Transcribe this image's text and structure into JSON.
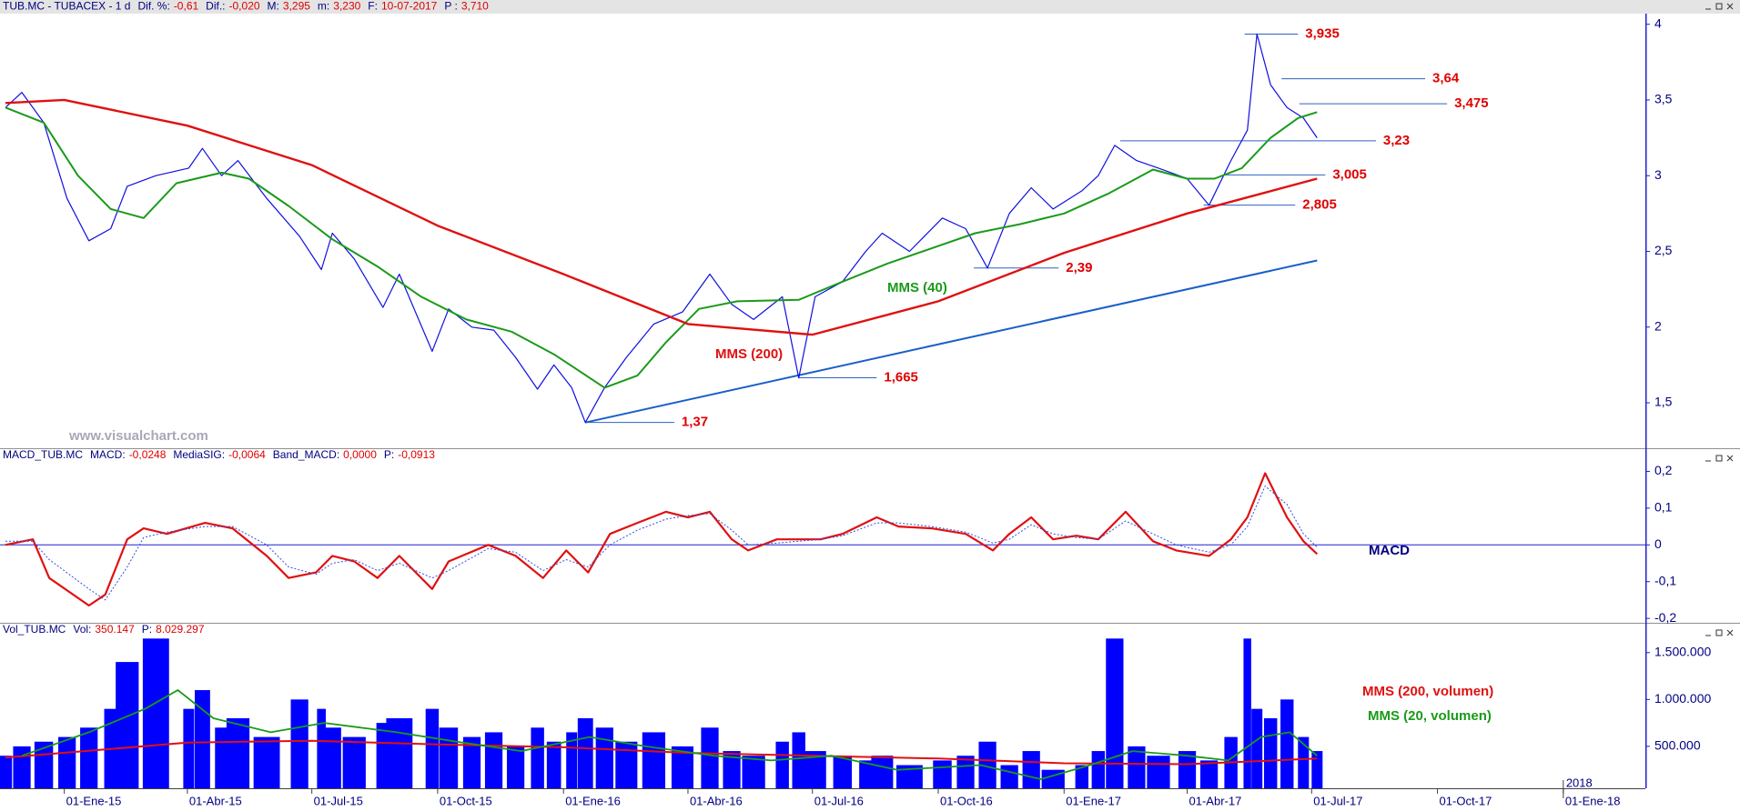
{
  "chart_data": [
    {
      "type": "line",
      "header": {
        "symbol": "TUB.MC - TUBACEX - 1 d",
        "fields": [
          {
            "label": "Dif. %:",
            "value": "-0,61"
          },
          {
            "label": "Dif.:",
            "value": "-0,020"
          },
          {
            "label": "M:",
            "value": "3,295"
          },
          {
            "label": "m:",
            "value": "3,230"
          },
          {
            "label": "F:",
            "value": "10-07-2017"
          },
          {
            "label": "P :",
            "value": "3,710"
          }
        ]
      },
      "watermark": "www.visualchart.com",
      "ylim": [
        1.2,
        4.07
      ],
      "yticks": [
        {
          "value": 1.5,
          "label": "1,5"
        },
        2,
        {
          "value": 2.5,
          "label": "2,5"
        },
        3,
        {
          "value": 3.5,
          "label": "3,5"
        },
        4
      ],
      "series": [
        {
          "color": "#1010e0",
          "width": 1.2,
          "x": [
            "2014-11-19",
            "2014-12-01",
            "2014-12-17",
            "2015-01-03",
            "2015-01-19",
            "2015-02-04",
            "2015-02-16",
            "2015-03-09",
            "2015-04-02",
            "2015-04-12",
            "2015-04-26",
            "2015-05-08",
            "2015-05-29",
            "2015-06-22",
            "2015-07-08",
            "2015-07-16",
            "2015-08-01",
            "2015-08-22",
            "2015-09-03",
            "2015-09-27",
            "2015-10-09",
            "2015-10-26",
            "2015-11-11",
            "2015-11-27",
            "2015-12-13",
            "2015-12-25",
            "2016-01-07",
            "2016-01-17",
            "2016-01-31",
            "2016-02-16",
            "2016-03-07",
            "2016-03-28",
            "2016-04-17",
            "2016-05-03",
            "2016-05-19",
            "2016-06-09",
            "2016-06-21",
            "2016-07-03",
            "2016-07-23",
            "2016-08-09",
            "2016-08-21",
            "2016-09-10",
            "2016-10-04",
            "2016-10-21",
            "2016-11-06",
            "2016-11-22",
            "2016-12-08",
            "2016-12-24",
            "2017-01-14",
            "2017-01-26",
            "2017-02-07",
            "2017-02-23",
            "2017-03-11",
            "2017-04-01",
            "2017-04-17",
            "2017-05-03",
            "2017-05-15",
            "2017-05-22",
            "2017-06-01",
            "2017-06-13",
            "2017-06-25",
            "2017-07-05"
          ],
          "values": [
            3.45,
            3.55,
            3.35,
            2.85,
            2.57,
            2.65,
            2.93,
            3.0,
            3.05,
            3.18,
            3.0,
            3.1,
            2.85,
            2.6,
            2.38,
            2.62,
            2.45,
            2.13,
            2.35,
            1.84,
            2.12,
            2.0,
            1.98,
            1.8,
            1.59,
            1.75,
            1.6,
            1.37,
            1.6,
            1.8,
            2.02,
            2.1,
            2.35,
            2.15,
            2.05,
            2.2,
            1.665,
            2.2,
            2.3,
            2.5,
            2.62,
            2.5,
            2.72,
            2.65,
            2.39,
            2.75,
            2.92,
            2.78,
            2.9,
            3.0,
            3.2,
            3.1,
            3.05,
            2.98,
            2.805,
            3.1,
            3.3,
            3.935,
            3.6,
            3.45,
            3.38,
            3.25
          ]
        },
        {
          "name": "MMS (40)",
          "color": "#1a9a1a",
          "width": 2,
          "x": [
            "2014-11-19",
            "2014-12-17",
            "2015-01-11",
            "2015-02-04",
            "2015-02-28",
            "2015-03-24",
            "2015-04-26",
            "2015-05-16",
            "2015-06-14",
            "2015-07-16",
            "2015-08-18",
            "2015-09-19",
            "2015-10-22",
            "2015-11-24",
            "2015-12-25",
            "2016-01-31",
            "2016-02-24",
            "2016-03-16",
            "2016-04-09",
            "2016-05-07",
            "2016-06-21",
            "2016-07-23",
            "2016-08-25",
            "2016-09-26",
            "2016-10-28",
            "2016-11-30",
            "2017-01-01",
            "2017-02-02",
            "2017-03-07",
            "2017-04-01",
            "2017-04-21",
            "2017-05-11",
            "2017-06-01",
            "2017-06-21",
            "2017-07-05"
          ],
          "values": [
            3.45,
            3.35,
            3.0,
            2.78,
            2.72,
            2.95,
            3.02,
            2.98,
            2.8,
            2.58,
            2.4,
            2.2,
            2.05,
            1.97,
            1.82,
            1.6,
            1.68,
            1.9,
            2.12,
            2.17,
            2.18,
            2.3,
            2.42,
            2.52,
            2.62,
            2.68,
            2.75,
            2.88,
            3.04,
            2.98,
            2.98,
            3.05,
            3.25,
            3.38,
            3.42
          ]
        },
        {
          "name": "MMS (200)",
          "color": "#e01010",
          "width": 2.4,
          "x": [
            "2014-11-19",
            "2015-01-01",
            "2015-04-01",
            "2015-07-01",
            "2015-10-01",
            "2016-01-01",
            "2016-04-01",
            "2016-07-01",
            "2016-10-01",
            "2017-01-01",
            "2017-04-01",
            "2017-07-05"
          ],
          "values": [
            3.48,
            3.5,
            3.33,
            3.07,
            2.67,
            2.35,
            2.02,
            1.95,
            2.17,
            2.49,
            2.75,
            2.98
          ]
        }
      ],
      "trendline": {
        "color": "#1a5fc8",
        "x": [
          "2016-01-17",
          "2017-07-05"
        ],
        "values": [
          1.37,
          2.44
        ]
      },
      "annotations": [
        {
          "value": 3.935,
          "label": "3,935",
          "x": [
            "2017-05-13",
            "2017-06-21"
          ]
        },
        {
          "value": 3.64,
          "label": "3,64",
          "x": [
            "2017-06-09",
            "2017-09-22"
          ]
        },
        {
          "value": 3.475,
          "label": "3,475",
          "x": [
            "2017-06-22",
            "2017-10-08"
          ]
        },
        {
          "value": 3.23,
          "label": "3,23",
          "x": [
            "2017-02-11",
            "2017-08-17"
          ]
        },
        {
          "value": 3.005,
          "label": "3,005",
          "x": [
            "2017-04-29",
            "2017-07-11"
          ]
        },
        {
          "value": 2.805,
          "label": "2,805",
          "x": [
            "2017-04-13",
            "2017-06-19"
          ]
        },
        {
          "value": 2.39,
          "label": "2,39",
          "x": [
            "2016-10-27",
            "2016-12-28"
          ]
        },
        {
          "value": 1.665,
          "label": "1,665",
          "x": [
            "2016-06-21",
            "2016-08-17"
          ]
        },
        {
          "value": 1.37,
          "label": "1,37",
          "x": [
            "2016-01-17",
            "2016-03-22"
          ]
        }
      ]
    },
    {
      "type": "line",
      "header": {
        "symbol": "MACD_TUB.MC",
        "fields": [
          {
            "label": "MACD:",
            "value": "-0,0248"
          },
          {
            "label": "MediaSIG:",
            "value": "-0,0064"
          },
          {
            "label": "Band_MACD:",
            "value": "0,0000"
          },
          {
            "label": "P:",
            "value": "-0,0913"
          }
        ]
      },
      "label": "MACD",
      "zero_line": true,
      "ylim": [
        -0.212,
        0.263
      ],
      "yticks": [
        {
          "value": 0.2,
          "label": "0,2"
        },
        {
          "value": 0.1,
          "label": "0,1"
        },
        0,
        {
          "value": -0.1,
          "label": "-0,1"
        },
        {
          "value": -0.2,
          "label": "-0,2"
        }
      ],
      "x": [
        "2014-11-19",
        "2014-12-09",
        "2014-12-21",
        "2015-01-19",
        "2015-01-31",
        "2015-02-16",
        "2015-02-28",
        "2015-03-17",
        "2015-04-14",
        "2015-05-04",
        "2015-05-29",
        "2015-06-14",
        "2015-07-04",
        "2015-07-16",
        "2015-08-01",
        "2015-08-18",
        "2015-09-03",
        "2015-09-27",
        "2015-10-09",
        "2015-11-07",
        "2015-11-27",
        "2015-12-17",
        "2016-01-03",
        "2016-01-19",
        "2016-02-04",
        "2016-02-24",
        "2016-03-16",
        "2016-04-01",
        "2016-04-17",
        "2016-05-03",
        "2016-05-15",
        "2016-06-05",
        "2016-07-07",
        "2016-07-23",
        "2016-08-17",
        "2016-09-02",
        "2016-09-26",
        "2016-10-21",
        "2016-11-10",
        "2016-11-22",
        "2016-12-08",
        "2016-12-24",
        "2017-01-10",
        "2017-01-26",
        "2017-02-15",
        "2017-03-07",
        "2017-03-24",
        "2017-04-17",
        "2017-05-03",
        "2017-05-15",
        "2017-05-28",
        "2017-06-13",
        "2017-06-25",
        "2017-07-05"
      ],
      "series": [
        {
          "color": "#e01010",
          "width": 2.2,
          "values": [
            0.0,
            0.015,
            -0.09,
            -0.165,
            -0.135,
            0.015,
            0.045,
            0.03,
            0.06,
            0.045,
            -0.03,
            -0.09,
            -0.075,
            -0.03,
            -0.045,
            -0.09,
            -0.03,
            -0.12,
            -0.045,
            0.0,
            -0.03,
            -0.09,
            -0.015,
            -0.075,
            0.03,
            0.06,
            0.09,
            0.075,
            0.09,
            0.015,
            -0.015,
            0.015,
            0.015,
            0.03,
            0.075,
            0.05,
            0.045,
            0.03,
            -0.015,
            0.03,
            0.075,
            0.015,
            0.025,
            0.015,
            0.09,
            0.01,
            -0.015,
            -0.03,
            0.015,
            0.075,
            0.195,
            0.075,
            0.01,
            -0.0248
          ]
        },
        {
          "color": "#3050e0",
          "width": 1,
          "dash": true,
          "values": [
            0.01,
            0.01,
            -0.04,
            -0.12,
            -0.15,
            -0.06,
            0.02,
            0.035,
            0.05,
            0.05,
            0.0,
            -0.06,
            -0.08,
            -0.05,
            -0.04,
            -0.07,
            -0.05,
            -0.09,
            -0.07,
            -0.01,
            -0.02,
            -0.07,
            -0.04,
            -0.06,
            0.0,
            0.04,
            0.07,
            0.08,
            0.085,
            0.04,
            0.0,
            0.005,
            0.015,
            0.025,
            0.06,
            0.06,
            0.05,
            0.035,
            0.005,
            0.015,
            0.055,
            0.03,
            0.02,
            0.015,
            0.065,
            0.03,
            0.0,
            -0.02,
            0.0,
            0.05,
            0.16,
            0.11,
            0.03,
            -0.0064
          ]
        }
      ]
    },
    {
      "type": "bar",
      "header": {
        "symbol": "Vol_TUB.MC",
        "fields": [
          {
            "label": "Vol:",
            "value": "350.147"
          },
          {
            "label": "P:",
            "value": "8.029.297"
          }
        ]
      },
      "color": "#0000ff",
      "ylim": [
        53000,
        1818000
      ],
      "yticks": [
        {
          "value": 500000,
          "label": "500.000"
        },
        {
          "value": 1000000,
          "label": "1.000.000"
        },
        {
          "value": 1500000,
          "label": "1.500.000"
        }
      ],
      "xlim": [
        "2014-11-15",
        "2018-03-02"
      ],
      "xticks": [
        {
          "value": "2015-01-01",
          "label": "01-Ene-15"
        },
        {
          "value": "2015-04-01",
          "label": "01-Abr-15"
        },
        {
          "value": "2015-07-01",
          "label": "01-Jul-15"
        },
        {
          "value": "2015-10-01",
          "label": "01-Oct-15"
        },
        {
          "value": "2016-01-01",
          "label": "01-Ene-16"
        },
        {
          "value": "2016-04-01",
          "label": "01-Abr-16"
        },
        {
          "value": "2016-07-01",
          "label": "01-Jul-16"
        },
        {
          "value": "2016-10-01",
          "label": "01-Oct-16"
        },
        {
          "value": "2017-01-01",
          "label": "01-Ene-17"
        },
        {
          "value": "2017-04-01",
          "label": "01-Abr-17"
        },
        {
          "value": "2017-07-01",
          "label": "01-Jul-17"
        },
        {
          "value": "2017-10-01",
          "label": "01-Oct-17"
        },
        {
          "value": "2018-01-01",
          "label": "01-Ene-18"
        }
      ],
      "year_marker": {
        "value": "2018-01-01",
        "label": "2018"
      },
      "x": [
        "2014-11-19",
        "2014-12-01",
        "2014-12-17",
        "2015-01-03",
        "2015-01-19",
        "2015-02-04",
        "2015-02-16",
        "2015-03-09",
        "2015-04-02",
        "2015-04-12",
        "2015-04-26",
        "2015-05-08",
        "2015-05-29",
        "2015-06-22",
        "2015-07-08",
        "2015-07-16",
        "2015-08-01",
        "2015-08-22",
        "2015-09-03",
        "2015-09-27",
        "2015-10-09",
        "2015-10-26",
        "2015-11-11",
        "2015-11-27",
        "2015-12-13",
        "2015-12-25",
        "2016-01-07",
        "2016-01-17",
        "2016-01-31",
        "2016-02-16",
        "2016-03-07",
        "2016-03-28",
        "2016-04-17",
        "2016-05-03",
        "2016-05-19",
        "2016-06-09",
        "2016-06-21",
        "2016-07-03",
        "2016-07-23",
        "2016-08-09",
        "2016-08-21",
        "2016-09-10",
        "2016-10-04",
        "2016-10-21",
        "2016-11-06",
        "2016-11-22",
        "2016-12-08",
        "2016-12-24",
        "2017-01-14",
        "2017-01-26",
        "2017-02-07",
        "2017-02-23",
        "2017-03-11",
        "2017-04-01",
        "2017-04-17",
        "2017-05-03",
        "2017-05-15",
        "2017-05-22",
        "2017-06-01",
        "2017-06-13",
        "2017-06-25",
        "2017-07-05"
      ],
      "values": [
        400000,
        500000,
        550000,
        600000,
        700000,
        900000,
        1400000,
        1650000,
        900000,
        1100000,
        700000,
        800000,
        600000,
        1000000,
        900000,
        700000,
        600000,
        750000,
        800000,
        900000,
        700000,
        600000,
        650000,
        500000,
        700000,
        550000,
        650000,
        800000,
        700000,
        550000,
        650000,
        500000,
        700000,
        450000,
        400000,
        550000,
        650000,
        450000,
        400000,
        350000,
        400000,
        300000,
        350000,
        400000,
        550000,
        300000,
        450000,
        250000,
        300000,
        450000,
        1650000,
        500000,
        400000,
        450000,
        350000,
        600000,
        1650000,
        900000,
        800000,
        1000000,
        600000,
        450000
      ],
      "series": [
        {
          "name": "MMS (200, volumen)",
          "color": "#e01010",
          "width": 2,
          "x": [
            "2014-11-19",
            "2015-04-01",
            "2015-07-01",
            "2015-10-01",
            "2016-01-01",
            "2016-04-01",
            "2016-07-01",
            "2016-10-01",
            "2017-01-01",
            "2017-04-01",
            "2017-07-05"
          ],
          "values": [
            380000,
            540000,
            560000,
            520000,
            490000,
            430000,
            400000,
            370000,
            320000,
            310000,
            370000
          ]
        },
        {
          "name": "MMS (20, volumen)",
          "color": "#1a9a1a",
          "width": 1.8,
          "x": [
            "2014-12-01",
            "2015-01-19",
            "2015-03-01",
            "2015-03-25",
            "2015-04-20",
            "2015-06-01",
            "2015-07-10",
            "2015-09-01",
            "2015-10-15",
            "2015-12-01",
            "2016-01-20",
            "2016-03-01",
            "2016-04-20",
            "2016-06-01",
            "2016-07-15",
            "2016-09-01",
            "2016-11-01",
            "2016-12-15",
            "2017-01-20",
            "2017-02-20",
            "2017-04-01",
            "2017-05-01",
            "2017-05-25",
            "2017-06-15",
            "2017-07-05"
          ],
          "values": [
            400000,
            650000,
            900000,
            1100000,
            800000,
            650000,
            750000,
            650000,
            550000,
            450000,
            600000,
            500000,
            400000,
            350000,
            400000,
            250000,
            300000,
            150000,
            300000,
            450000,
            400000,
            350000,
            600000,
            650000,
            400000
          ]
        }
      ]
    }
  ]
}
